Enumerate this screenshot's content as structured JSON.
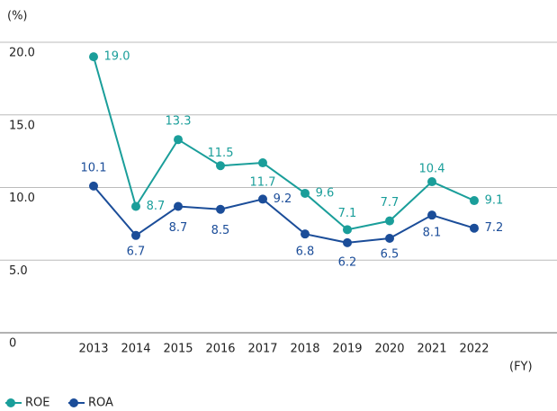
{
  "chart_data": {
    "type": "line",
    "y_unit": "(%)",
    "x_unit": "(FY)",
    "categories": [
      "2013",
      "2014",
      "2015",
      "2016",
      "2017",
      "2018",
      "2019",
      "2020",
      "2021",
      "2022"
    ],
    "series": [
      {
        "name": "ROE",
        "color": "#1a9e9a",
        "values": [
          19,
          8.7,
          13.3,
          11.5,
          11.7,
          9.6,
          7.1,
          7.7,
          10.4,
          9.1
        ],
        "value_labels": [
          "19.0",
          "8.7",
          "13.3",
          "11.5",
          "11.7",
          "9.6",
          "7.1",
          "7.7",
          "10.4",
          "9.1"
        ]
      },
      {
        "name": "ROA",
        "color": "#1b4d99",
        "values": [
          10.1,
          6.7,
          8.7,
          8.5,
          9.2,
          6.8,
          6.2,
          6.5,
          8.1,
          7.2
        ],
        "value_labels": [
          "10.1",
          "6.7",
          "8.7",
          "8.5",
          "9.2",
          "6.8",
          "6.2",
          "6.5",
          "8.1",
          "7.2"
        ]
      }
    ],
    "ylim": [
      0,
      20
    ],
    "yticks": [
      0,
      {
        "value": 5,
        "label": "5.0"
      },
      {
        "value": 10,
        "label": "10.0"
      },
      {
        "value": 15,
        "label": "15.0"
      },
      {
        "value": 20,
        "label": "20.0"
      }
    ],
    "grid": true,
    "legend": "bottom-left"
  }
}
